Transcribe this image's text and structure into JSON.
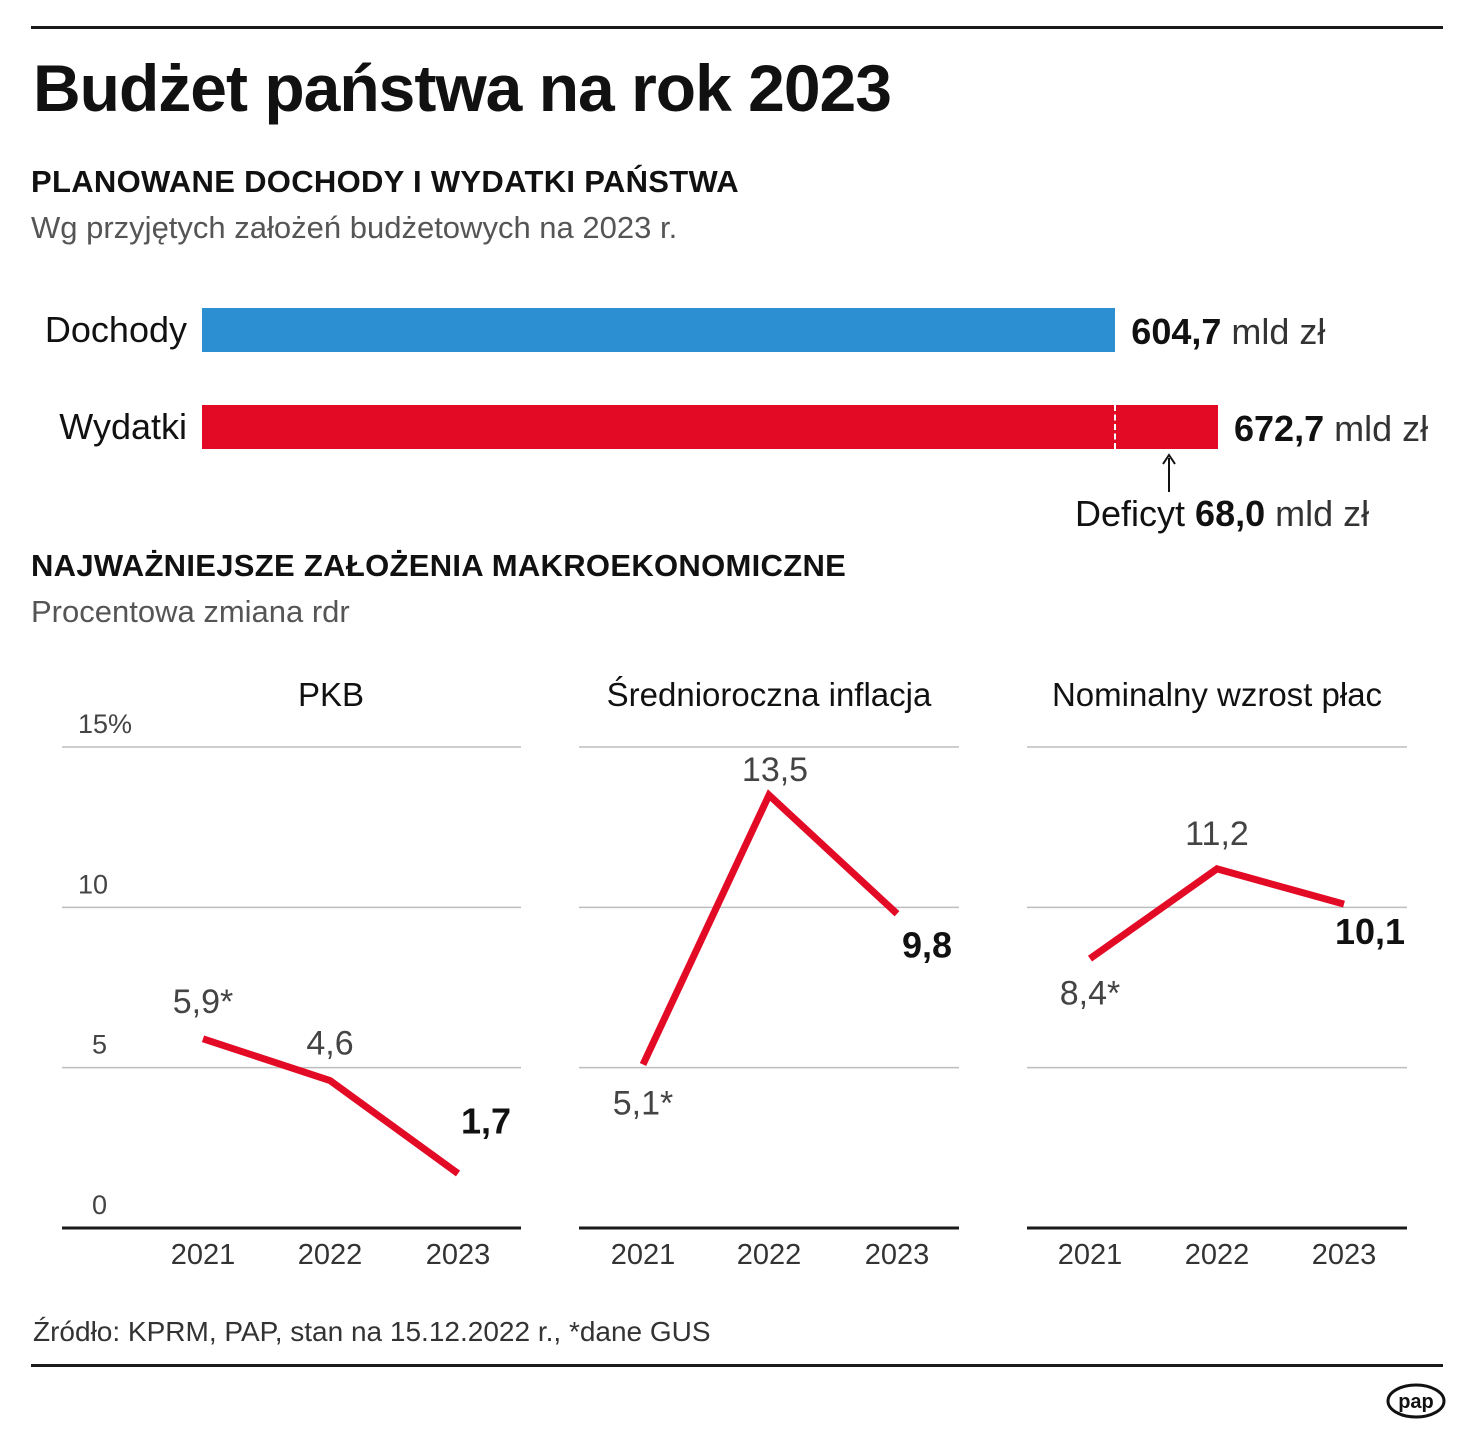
{
  "title": "Budżet państwa na rok 2023",
  "budget": {
    "heading": "PLANOWANE DOCHODY I WYDATKI PAŃSTWA",
    "subheading": "Wg przyjętych założeń budżetowych na 2023 r.",
    "unit": "mld zł",
    "deficit_label": "Deficyt",
    "deficit_value": "68,0",
    "deficit_unit": "mld zł"
  },
  "macro": {
    "heading": "NAJWAŻNIEJSZE ZAŁOŻENIA MAKROEKONOMICZNE",
    "subheading": "Procentowa zmiana rdr"
  },
  "footer": {
    "source": "Źródło: KPRM, PAP, stan na 15.12.2022 r., *dane GUS"
  },
  "logo": {
    "text": "pap"
  },
  "colors": {
    "income": "#2b8fd1",
    "expense": "#e30a26",
    "line": "#e30a26",
    "grid": "#bdbdbd"
  },
  "chart_data": [
    {
      "type": "bar",
      "orientation": "horizontal",
      "categories": [
        "Dochody",
        "Wydatki"
      ],
      "values": [
        604.7,
        672.7
      ],
      "value_labels": [
        "604,7",
        "672,7"
      ],
      "unit": "mld zł",
      "annotation": {
        "label": "Deficyt",
        "value": 68.0,
        "value_label": "68,0",
        "unit": "mld zł"
      }
    },
    {
      "type": "line",
      "title": "PKB",
      "x": [
        "2021",
        "2022",
        "2023"
      ],
      "values": [
        5.9,
        4.6,
        1.7
      ],
      "value_labels": [
        "5,9*",
        "4,6",
        "1,7"
      ],
      "ylim": [
        0,
        15
      ],
      "yticks": [
        0,
        5,
        10,
        15
      ],
      "ytick_labels": [
        "0",
        "5",
        "10",
        "15%"
      ],
      "grid": true
    },
    {
      "type": "line",
      "title": "Średnioroczna inflacja",
      "x": [
        "2021",
        "2022",
        "2023"
      ],
      "values": [
        5.1,
        13.5,
        9.8
      ],
      "value_labels": [
        "5,1*",
        "13,5",
        "9,8"
      ],
      "ylim": [
        0,
        15
      ],
      "grid": true
    },
    {
      "type": "line",
      "title": "Nominalny wzrost płac",
      "x": [
        "2021",
        "2022",
        "2023"
      ],
      "values": [
        8.4,
        11.2,
        10.1
      ],
      "value_labels": [
        "8,4*",
        "11,2",
        "10,1"
      ],
      "ylim": [
        0,
        15
      ],
      "grid": true
    }
  ]
}
